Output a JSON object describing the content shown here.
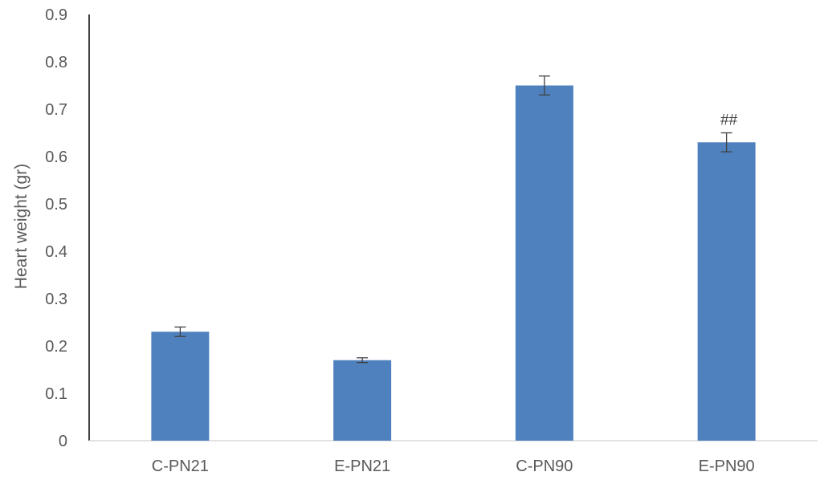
{
  "chart_data": {
    "type": "bar",
    "title": "",
    "xlabel": "",
    "ylabel": "Heart weight (gr)",
    "categories": [
      "C-PN21",
      "E-PN21",
      "C-PN90",
      "E-PN90"
    ],
    "values": [
      0.23,
      0.17,
      0.75,
      0.63
    ],
    "error": [
      0.01,
      0.005,
      0.02,
      0.02
    ],
    "annotations": [
      "",
      "",
      "",
      "##"
    ],
    "yticks": [
      "0",
      "0.1",
      "0.2",
      "0.3",
      "0.4",
      "0.5",
      "0.6",
      "0.7",
      "0.8",
      "0.9"
    ],
    "ylim": [
      0,
      0.9
    ],
    "grid": false,
    "colors": {
      "bar": "#4e81bd",
      "axis": "#000000",
      "baseline": "#d9d9d9",
      "errorbar": "#404040"
    }
  }
}
